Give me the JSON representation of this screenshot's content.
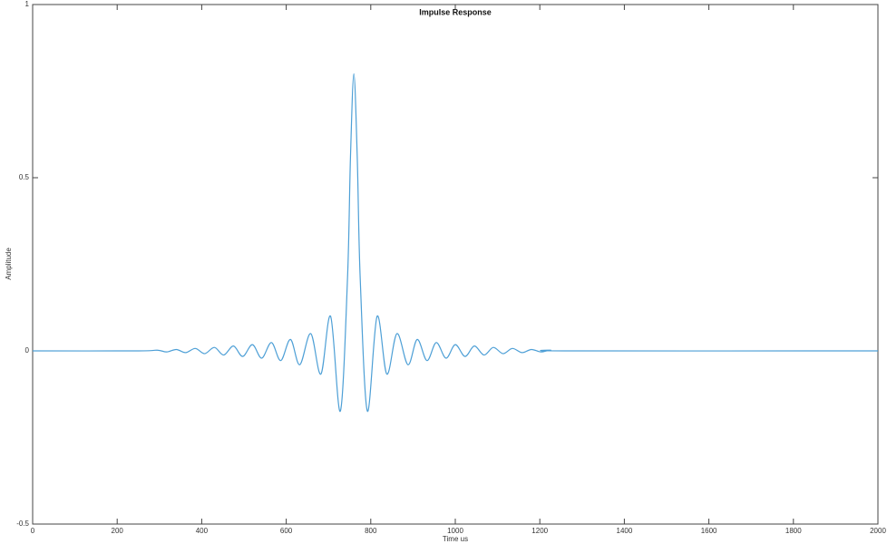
{
  "chart_data": {
    "type": "line",
    "title": "Impulse Response",
    "x_label": "Time us",
    "y_label": "Amplitude",
    "x": [
      0,
      250,
      295,
      317,
      340,
      362,
      385,
      407,
      430,
      452,
      475,
      497,
      520,
      542,
      565,
      587,
      610,
      632,
      658,
      682,
      705,
      728,
      745,
      752,
      760,
      768,
      775,
      792,
      815,
      838,
      862,
      888,
      910,
      933,
      955,
      978,
      1000,
      1023,
      1045,
      1068,
      1090,
      1113,
      1135,
      1158,
      1180,
      1203,
      1225,
      1270,
      2000
    ],
    "values": [
      0,
      0,
      0.002,
      -0.003,
      0.004,
      -0.005,
      0.007,
      -0.008,
      0.01,
      -0.012,
      0.014,
      -0.016,
      0.018,
      -0.021,
      0.024,
      -0.028,
      0.033,
      -0.04,
      0.05,
      -0.067,
      0.1,
      -0.174,
      0.21,
      0.56,
      0.8,
      0.56,
      0.21,
      -0.174,
      0.1,
      -0.067,
      0.05,
      -0.04,
      0.033,
      -0.028,
      0.024,
      -0.021,
      0.018,
      -0.016,
      0.014,
      -0.012,
      0.01,
      -0.008,
      0.007,
      -0.005,
      0.004,
      -0.003,
      0.002,
      0,
      0
    ],
    "color": "#4d9fd6",
    "xlim": [
      0,
      2000
    ],
    "xticks": [
      0,
      200,
      400,
      600,
      800,
      1000,
      1200,
      1400,
      1600,
      1800,
      2000
    ],
    "ylim": [
      -0.5,
      1
    ],
    "yticks": [
      -0.5,
      0,
      0.5,
      1
    ]
  }
}
